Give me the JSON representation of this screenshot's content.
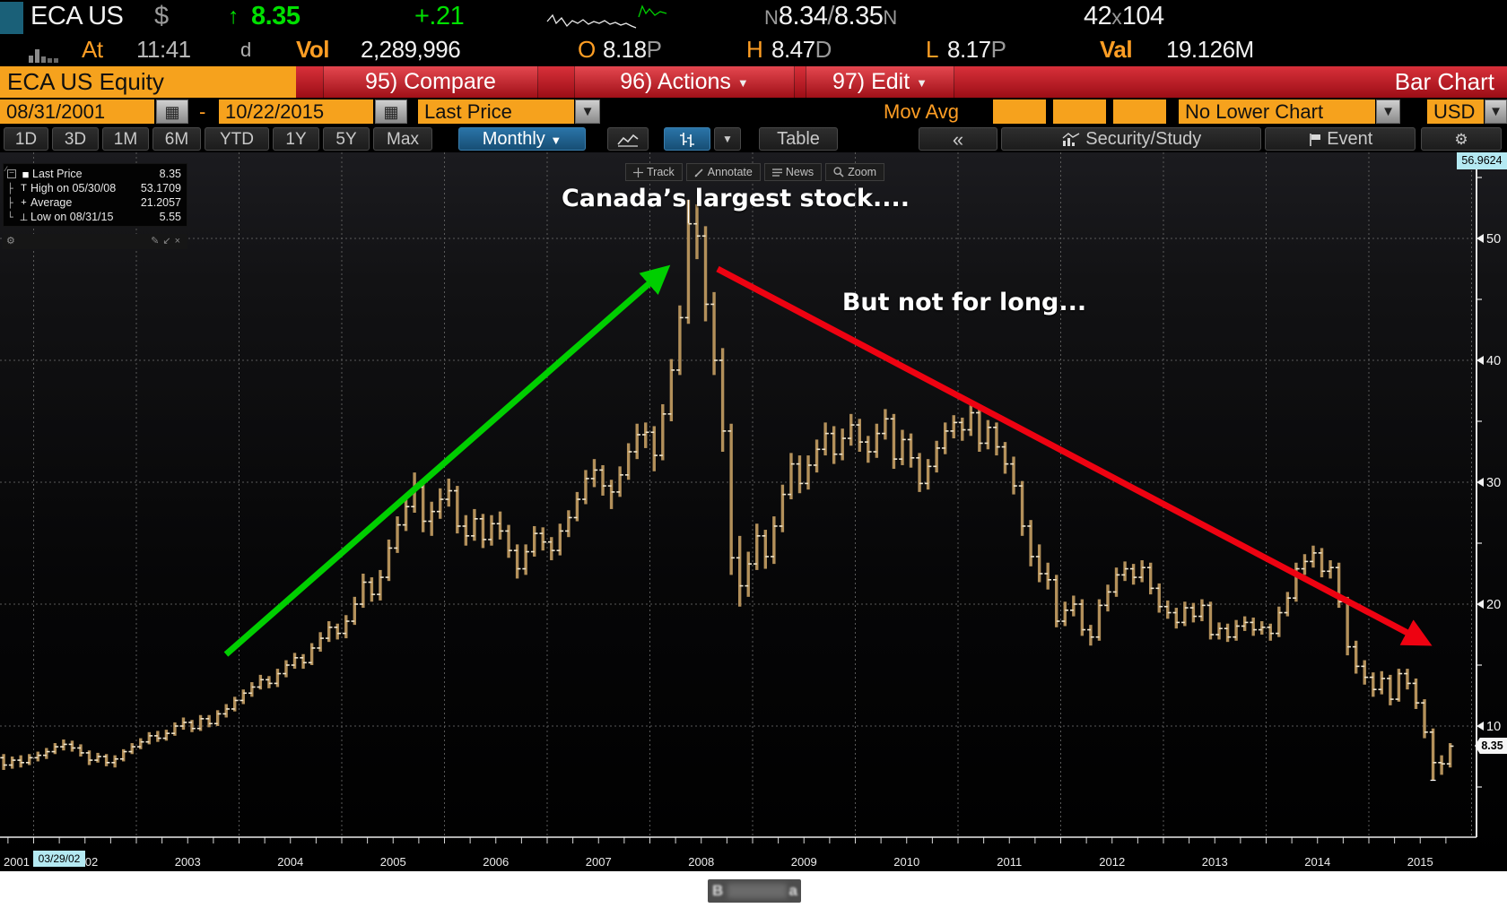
{
  "header": {
    "ticker": "ECA US",
    "currency_symbol": "$",
    "arrow": "↑",
    "last_price": "8.35",
    "change": "+.21",
    "bid_ask": {
      "prefix": "N",
      "bid": "8.34",
      "slash": "/",
      "ask": "8.35",
      "suffix": "N"
    },
    "size": {
      "bid_size": "42",
      "x": "x",
      "ask_size": "104"
    },
    "row2": {
      "at_label": "At",
      "time": "11:41",
      "session": "d",
      "vol_label": "Vol",
      "volume": "2,289,996",
      "open_label": "O",
      "open": "8.18",
      "open_suffix": "P",
      "high_label": "H",
      "high": "8.47",
      "high_suffix": "D",
      "low_label": "L",
      "low": "8.17",
      "low_suffix": "P",
      "val_label": "Val",
      "value": "19.126M"
    }
  },
  "toolbar": {
    "security": "ECA US Equity",
    "compare": "95) Compare",
    "actions": "96) Actions",
    "edit": "97) Edit",
    "chart_title": "Bar Chart",
    "date_from": "08/31/2001",
    "dash": "-",
    "date_to": "10/22/2015",
    "price_field": "Last Price",
    "mov_avg_label": "Mov Avg",
    "lower_chart": "No Lower Chart",
    "currency": "USD",
    "ranges": [
      "1D",
      "3D",
      "1M",
      "6M",
      "YTD",
      "1Y",
      "5Y",
      "Max"
    ],
    "period": "Monthly",
    "table_label": "Table",
    "collapse_label": "«",
    "security_study": "Security/Study",
    "event_label": "Event"
  },
  "chart_toolbar": {
    "track": "Track",
    "annotate": "Annotate",
    "news": "News",
    "zoom": "Zoom"
  },
  "legend": {
    "rows": [
      {
        "tree": "",
        "marker": "■",
        "label": "Last Price",
        "value": "8.35"
      },
      {
        "tree": "├",
        "marker": "T",
        "label": "High on 05/30/08",
        "value": "53.1709"
      },
      {
        "tree": "├",
        "marker": "+",
        "label": "Average",
        "value": "21.2057"
      },
      {
        "tree": "└",
        "marker": "⊥",
        "label": "Low on 08/31/15",
        "value": "5.55"
      }
    ]
  },
  "annotations": {
    "peak_text": "Canada’s largest stock....",
    "decline_text": "But not for long..."
  },
  "axis": {
    "track_price": "56.9624",
    "track_date": "03/29/02",
    "last_badge": "8.35",
    "y_ticks": [
      50,
      40,
      30,
      20,
      10
    ],
    "y_minor": [
      55,
      45,
      35,
      25,
      15,
      5
    ],
    "years": [
      "2001",
      "2002",
      "2003",
      "2004",
      "2005",
      "2006",
      "2007",
      "2008",
      "2009",
      "2010",
      "2011",
      "2012",
      "2013",
      "2014",
      "2015"
    ]
  },
  "watermark": {
    "left": "B",
    "right": "a"
  },
  "colors": {
    "up_green": "#00e000",
    "label_orange": "#ff9e24",
    "amber_field": "#f6a21d",
    "bar_tan": "#b3905a",
    "tick_cream": "#f0e6cf",
    "arrow_green": "#00cf00",
    "arrow_red": "#ee0211",
    "track_cyan": "#b4e9f2",
    "menubar_red": "#b5121b",
    "tab_blue": "#1b5e8a",
    "axis_white": "#ebebeb"
  },
  "chart_data": {
    "type": "ohlc-bar",
    "symbol": "ECA US Equity",
    "period": "monthly",
    "start": "2001-08",
    "end": "2015-10",
    "price_field": "Last Price",
    "last": 8.35,
    "average": 21.2057,
    "high_marker": {
      "date": "05/30/08",
      "value": 53.1709
    },
    "low_marker": {
      "date": "08/31/15",
      "value": 5.55
    },
    "ylim": [
      2.5,
      57
    ],
    "ohlc": [
      [
        7.8,
        8.1,
        7.0,
        7.4
      ],
      [
        7.4,
        7.7,
        6.4,
        6.8
      ],
      [
        6.8,
        7.5,
        6.5,
        7.2
      ],
      [
        7.2,
        7.6,
        6.6,
        7.0
      ],
      [
        7.0,
        7.7,
        6.8,
        7.4
      ],
      [
        7.4,
        7.9,
        7.1,
        7.6
      ],
      [
        7.6,
        8.2,
        7.3,
        7.9
      ],
      [
        7.9,
        8.6,
        7.7,
        8.3
      ],
      [
        8.3,
        8.9,
        8.0,
        8.5
      ],
      [
        8.5,
        8.8,
        7.9,
        8.2
      ],
      [
        8.2,
        8.5,
        7.5,
        7.8
      ],
      [
        7.8,
        8.0,
        6.8,
        7.2
      ],
      [
        7.2,
        7.8,
        7.0,
        7.5
      ],
      [
        7.5,
        7.7,
        6.7,
        7.0
      ],
      [
        7.0,
        7.6,
        6.6,
        7.3
      ],
      [
        7.3,
        8.1,
        7.1,
        7.9
      ],
      [
        7.9,
        8.6,
        7.7,
        8.3
      ],
      [
        8.3,
        9.0,
        8.1,
        8.7
      ],
      [
        8.7,
        9.5,
        8.5,
        9.2
      ],
      [
        9.2,
        9.6,
        8.7,
        9.0
      ],
      [
        9.0,
        9.7,
        8.8,
        9.4
      ],
      [
        9.4,
        10.3,
        9.2,
        10.0
      ],
      [
        10.0,
        10.7,
        9.7,
        10.3
      ],
      [
        10.3,
        10.5,
        9.5,
        9.8
      ],
      [
        9.8,
        10.9,
        9.6,
        10.6
      ],
      [
        10.6,
        10.9,
        9.9,
        10.2
      ],
      [
        10.2,
        11.3,
        10.0,
        11.0
      ],
      [
        11.0,
        11.8,
        10.7,
        11.4
      ],
      [
        11.4,
        12.4,
        11.2,
        12.1
      ],
      [
        12.1,
        13.0,
        11.8,
        12.7
      ],
      [
        12.7,
        13.6,
        12.4,
        13.2
      ],
      [
        13.2,
        14.2,
        13.0,
        13.8
      ],
      [
        13.8,
        14.1,
        13.1,
        13.5
      ],
      [
        13.5,
        14.7,
        13.2,
        14.3
      ],
      [
        14.3,
        15.4,
        14.0,
        15.0
      ],
      [
        15.0,
        16.0,
        14.7,
        15.6
      ],
      [
        15.6,
        15.9,
        14.7,
        15.2
      ],
      [
        15.2,
        16.8,
        15.0,
        16.4
      ],
      [
        16.4,
        17.7,
        16.1,
        17.2
      ],
      [
        17.2,
        18.6,
        16.9,
        18.1
      ],
      [
        18.1,
        18.4,
        17.1,
        17.6
      ],
      [
        17.6,
        19.1,
        17.2,
        18.6
      ],
      [
        18.6,
        20.6,
        18.3,
        20.0
      ],
      [
        20.0,
        22.5,
        19.7,
        21.8
      ],
      [
        21.8,
        22.2,
        20.2,
        20.8
      ],
      [
        20.8,
        22.8,
        20.3,
        22.2
      ],
      [
        22.2,
        25.3,
        21.9,
        24.6
      ],
      [
        24.6,
        27.2,
        24.2,
        26.5
      ],
      [
        26.5,
        28.9,
        26.0,
        28.0
      ],
      [
        28.0,
        30.8,
        27.5,
        29.6
      ],
      [
        29.6,
        30.0,
        25.9,
        26.8
      ],
      [
        26.8,
        28.4,
        25.6,
        27.6
      ],
      [
        27.6,
        29.5,
        27.0,
        28.6
      ],
      [
        28.6,
        30.3,
        28.0,
        29.3
      ],
      [
        29.3,
        29.7,
        25.8,
        26.4
      ],
      [
        26.4,
        27.3,
        24.8,
        25.6
      ],
      [
        25.6,
        27.8,
        25.2,
        27.0
      ],
      [
        27.0,
        27.4,
        24.6,
        25.3
      ],
      [
        25.3,
        27.3,
        24.8,
        26.6
      ],
      [
        26.6,
        27.6,
        25.3,
        26.0
      ],
      [
        26.0,
        26.5,
        23.8,
        24.4
      ],
      [
        24.4,
        24.9,
        22.1,
        22.9
      ],
      [
        22.9,
        24.9,
        22.4,
        24.3
      ],
      [
        24.3,
        26.4,
        23.9,
        25.8
      ],
      [
        25.8,
        26.3,
        24.4,
        25.1
      ],
      [
        25.1,
        25.5,
        23.6,
        24.4
      ],
      [
        24.4,
        26.6,
        24.0,
        26.0
      ],
      [
        26.0,
        27.7,
        25.5,
        27.1
      ],
      [
        27.1,
        29.2,
        26.8,
        28.6
      ],
      [
        28.6,
        31.0,
        28.2,
        30.3
      ],
      [
        30.3,
        31.9,
        29.6,
        31.0
      ],
      [
        31.0,
        31.4,
        28.9,
        29.7
      ],
      [
        29.7,
        30.2,
        27.8,
        29.2
      ],
      [
        29.2,
        31.3,
        28.8,
        30.6
      ],
      [
        30.6,
        33.2,
        30.2,
        32.5
      ],
      [
        32.5,
        34.8,
        31.9,
        33.9
      ],
      [
        33.9,
        34.9,
        32.8,
        34.1
      ],
      [
        34.1,
        34.6,
        30.9,
        32.2
      ],
      [
        32.2,
        36.4,
        31.8,
        35.6
      ],
      [
        35.6,
        40.1,
        35.0,
        39.2
      ],
      [
        39.2,
        44.5,
        38.8,
        43.5
      ],
      [
        43.5,
        53.1709,
        43.0,
        51.2
      ],
      [
        51.2,
        52.8,
        48.3,
        50.2
      ],
      [
        50.2,
        51.0,
        43.2,
        44.6
      ],
      [
        44.6,
        45.6,
        38.8,
        40.0
      ],
      [
        40.0,
        41.0,
        32.5,
        34.2
      ],
      [
        34.2,
        34.8,
        22.4,
        23.8
      ],
      [
        23.8,
        25.6,
        19.8,
        21.5
      ],
      [
        21.5,
        24.3,
        20.6,
        23.3
      ],
      [
        23.3,
        26.6,
        22.8,
        25.6
      ],
      [
        25.6,
        26.1,
        22.9,
        23.9
      ],
      [
        23.9,
        27.2,
        23.3,
        26.4
      ],
      [
        26.4,
        29.8,
        25.9,
        29.0
      ],
      [
        29.0,
        32.4,
        28.6,
        31.5
      ],
      [
        31.5,
        32.2,
        29.1,
        29.9
      ],
      [
        29.9,
        32.2,
        29.4,
        31.4
      ],
      [
        31.4,
        33.5,
        30.8,
        32.7
      ],
      [
        32.7,
        34.9,
        32.2,
        34.0
      ],
      [
        34.0,
        34.6,
        31.5,
        32.3
      ],
      [
        32.3,
        34.4,
        31.8,
        33.6
      ],
      [
        33.6,
        35.6,
        33.0,
        34.7
      ],
      [
        34.7,
        35.2,
        32.5,
        33.3
      ],
      [
        33.3,
        33.8,
        31.6,
        32.5
      ],
      [
        32.5,
        34.8,
        32.0,
        34.0
      ],
      [
        34.0,
        36.0,
        33.5,
        35.2
      ],
      [
        35.2,
        35.6,
        31.1,
        31.9
      ],
      [
        31.9,
        34.3,
        31.4,
        33.5
      ],
      [
        33.5,
        34.0,
        31.2,
        32.0
      ],
      [
        32.0,
        32.4,
        29.2,
        29.9
      ],
      [
        29.9,
        31.9,
        29.4,
        31.3
      ],
      [
        31.3,
        33.4,
        30.8,
        32.8
      ],
      [
        32.8,
        34.9,
        32.3,
        34.2
      ],
      [
        34.2,
        35.5,
        33.6,
        34.9
      ],
      [
        34.9,
        35.3,
        33.4,
        34.3
      ],
      [
        34.3,
        36.3,
        33.8,
        35.7
      ],
      [
        35.7,
        36.1,
        32.5,
        33.2
      ],
      [
        33.2,
        35.1,
        32.7,
        34.5
      ],
      [
        34.5,
        34.9,
        32.2,
        32.9
      ],
      [
        32.9,
        33.3,
        30.7,
        31.5
      ],
      [
        31.5,
        32.1,
        29.0,
        29.7
      ],
      [
        29.7,
        30.1,
        25.6,
        26.4
      ],
      [
        26.4,
        26.9,
        23.1,
        23.9
      ],
      [
        23.9,
        24.9,
        21.8,
        22.5
      ],
      [
        22.5,
        23.4,
        21.2,
        22.0
      ],
      [
        22.0,
        22.4,
        18.1,
        18.6
      ],
      [
        18.6,
        20.2,
        18.2,
        19.5
      ],
      [
        19.5,
        20.7,
        19.0,
        20.0
      ],
      [
        20.0,
        20.4,
        17.4,
        17.9
      ],
      [
        17.9,
        18.3,
        16.6,
        17.3
      ],
      [
        17.3,
        20.4,
        17.0,
        19.9
      ],
      [
        19.9,
        21.6,
        19.4,
        21.0
      ],
      [
        21.0,
        23.0,
        20.6,
        22.4
      ],
      [
        22.4,
        23.5,
        21.9,
        22.9
      ],
      [
        22.9,
        23.3,
        21.6,
        22.2
      ],
      [
        22.2,
        23.6,
        21.8,
        23.0
      ],
      [
        23.0,
        23.4,
        20.8,
        21.3
      ],
      [
        21.3,
        21.7,
        19.3,
        19.8
      ],
      [
        19.8,
        20.3,
        18.8,
        19.3
      ],
      [
        19.3,
        19.7,
        18.0,
        18.5
      ],
      [
        18.5,
        20.2,
        18.2,
        19.7
      ],
      [
        19.7,
        20.1,
        18.5,
        19.0
      ],
      [
        19.0,
        20.4,
        18.6,
        19.9
      ],
      [
        19.9,
        20.2,
        17.1,
        17.5
      ],
      [
        17.5,
        18.5,
        17.1,
        18.0
      ],
      [
        18.0,
        18.4,
        16.9,
        17.3
      ],
      [
        17.3,
        18.7,
        17.0,
        18.2
      ],
      [
        18.2,
        19.0,
        17.8,
        18.5
      ],
      [
        18.5,
        18.9,
        17.4,
        17.9
      ],
      [
        17.9,
        18.6,
        17.5,
        18.1
      ],
      [
        18.1,
        18.4,
        17.0,
        17.6
      ],
      [
        17.6,
        19.8,
        17.3,
        19.3
      ],
      [
        19.3,
        21.0,
        19.0,
        20.5
      ],
      [
        20.5,
        23.4,
        20.2,
        22.9
      ],
      [
        22.9,
        24.1,
        22.4,
        23.5
      ],
      [
        23.5,
        24.8,
        23.0,
        24.2
      ],
      [
        24.2,
        24.6,
        22.2,
        22.7
      ],
      [
        22.7,
        23.6,
        22.1,
        23.0
      ],
      [
        23.0,
        23.4,
        19.7,
        20.2
      ],
      [
        20.2,
        20.6,
        15.8,
        16.5
      ],
      [
        16.5,
        17.0,
        14.3,
        14.9
      ],
      [
        14.9,
        15.4,
        13.4,
        14.0
      ],
      [
        14.0,
        14.4,
        12.4,
        13.0
      ],
      [
        13.0,
        14.5,
        12.6,
        13.9
      ],
      [
        13.9,
        14.2,
        11.7,
        12.2
      ],
      [
        12.2,
        14.7,
        12.0,
        14.3
      ],
      [
        14.3,
        14.7,
        13.0,
        13.5
      ],
      [
        13.5,
        13.9,
        11.4,
        11.9
      ],
      [
        11.9,
        12.2,
        9.0,
        9.5
      ],
      [
        9.5,
        9.8,
        5.55,
        7.0
      ],
      [
        7.0,
        7.6,
        6.0,
        6.9
      ],
      [
        6.9,
        8.6,
        6.6,
        8.35
      ]
    ]
  }
}
